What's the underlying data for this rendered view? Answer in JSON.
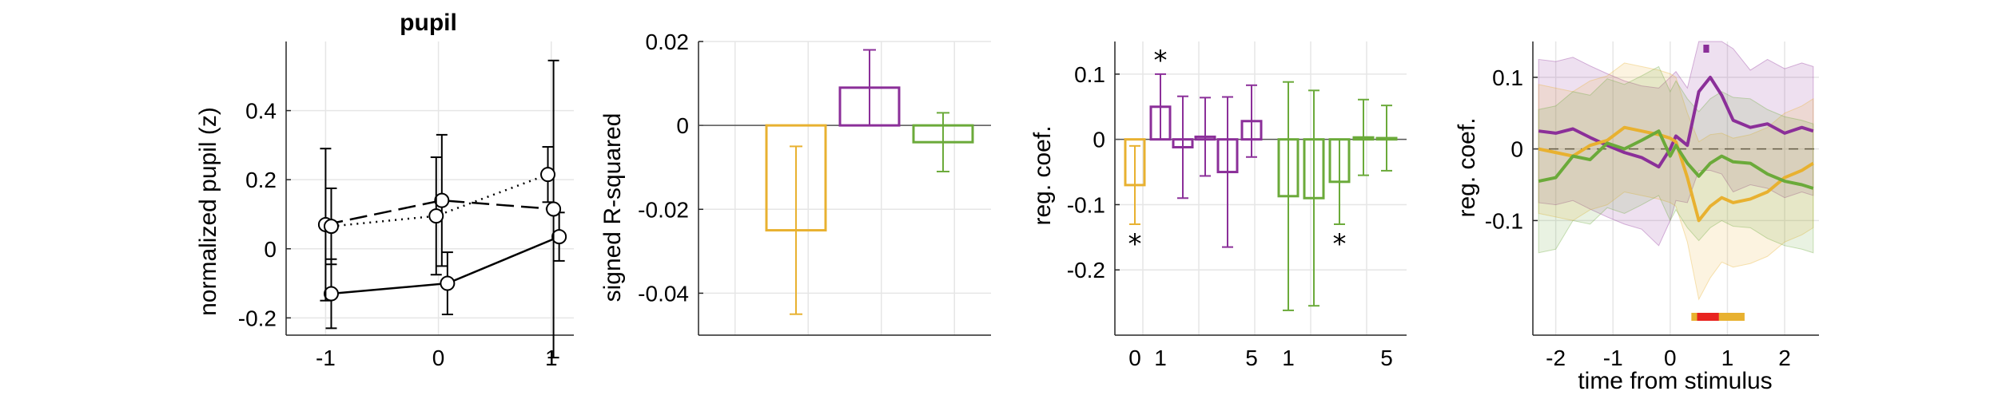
{
  "colors": {
    "yellow": "#E8B130",
    "purple": "#8B2F99",
    "green": "#6BAA3A",
    "red": "#E8231F",
    "black": "#000000"
  },
  "chart_data": [
    {
      "type": "line",
      "title": "pupil",
      "ylabel": "normalized pupil (z)",
      "xlabel": "",
      "grid": true,
      "xlim": [
        -1.35,
        1.2
      ],
      "ylim": [
        -0.25,
        0.6
      ],
      "xticks": [
        -1,
        0,
        1
      ],
      "xtick_labels": [
        "-1",
        "0",
        "1"
      ],
      "yticks": [
        -0.2,
        0,
        0.2,
        0.4
      ],
      "ytick_labels": [
        "-0.2",
        "0",
        "0.2",
        "0.4"
      ],
      "series": [
        {
          "style": "solid",
          "x": [
            -0.95,
            0.08,
            1.07
          ],
          "y": [
            -0.13,
            -0.1,
            0.035
          ],
          "err": [
            0.1,
            0.09,
            0.07
          ]
        },
        {
          "style": "dashed",
          "x": [
            -1.0,
            0.03,
            1.02
          ],
          "y": [
            0.07,
            0.14,
            0.115
          ],
          "err": [
            0.22,
            0.19,
            0.43
          ]
        },
        {
          "style": "dotted",
          "x": [
            -0.95,
            -0.02,
            0.97
          ],
          "y": [
            0.065,
            0.095,
            0.215
          ],
          "err": [
            0.11,
            0.17,
            0.08
          ]
        }
      ]
    },
    {
      "type": "bar",
      "ylabel": "signed R-squared",
      "grid": true,
      "ylim": [
        -0.05,
        0.02
      ],
      "yticks": [
        0.02,
        0,
        -0.02,
        -0.04
      ],
      "ytick_labels": [
        "0.02",
        "0",
        "-0.02",
        "-0.04"
      ],
      "bars": [
        {
          "color": "yellow",
          "value": -0.025,
          "err": 0.02
        },
        {
          "color": "purple",
          "value": 0.009,
          "err": 0.009
        },
        {
          "color": "green",
          "value": -0.004,
          "err": 0.007
        }
      ]
    },
    {
      "type": "bar",
      "ylabel": "reg. coef.",
      "grid": true,
      "ylim": [
        -0.3,
        0.15
      ],
      "yticks": [
        0.1,
        0,
        -0.1,
        -0.2
      ],
      "ytick_labels": [
        "0.1",
        "0",
        "-0.1",
        "-0.2"
      ],
      "xtick_labels": [
        "0",
        "1",
        "5",
        "1",
        "5"
      ],
      "significance_marker": "*",
      "bars": [
        {
          "color": "yellow",
          "value": -0.07,
          "err": 0.06,
          "star": "below"
        },
        {
          "color": "purple",
          "value": 0.05,
          "err": 0.05,
          "star": "above"
        },
        {
          "color": "purple",
          "value": -0.012,
          "err": 0.078
        },
        {
          "color": "purple",
          "value": 0.004,
          "err": 0.06
        },
        {
          "color": "purple",
          "value": -0.05,
          "err": 0.115
        },
        {
          "color": "purple",
          "value": 0.028,
          "err": 0.055
        },
        {
          "color": "green",
          "value": -0.087,
          "err": 0.175
        },
        {
          "color": "green",
          "value": -0.09,
          "err": 0.165
        },
        {
          "color": "green",
          "value": -0.065,
          "err": 0.065,
          "star": "below"
        },
        {
          "color": "green",
          "value": 0.003,
          "err": 0.058
        },
        {
          "color": "green",
          "value": 0.002,
          "err": 0.05
        }
      ]
    },
    {
      "type": "line",
      "ylabel": "reg. coef.",
      "xlabel": "time from stimulus",
      "grid": true,
      "xlim": [
        -2.4,
        2.6
      ],
      "ylim": [
        -0.26,
        0.15
      ],
      "xticks": [
        -2,
        -1,
        0,
        1,
        2
      ],
      "xtick_labels": [
        "-2",
        "-1",
        "0",
        "1",
        "2"
      ],
      "yticks": [
        0.1,
        0,
        -0.1
      ],
      "ytick_labels": [
        "0.1",
        "0",
        "-0.1"
      ],
      "zero_line": "dashed",
      "significance_bars": [
        {
          "color": "purple",
          "x0": 0.58,
          "x1": 0.68,
          "level": "top"
        },
        {
          "color": "yellow",
          "x0": 0.37,
          "x1": 1.3,
          "level": "bottom"
        },
        {
          "color": "red",
          "x0": 0.47,
          "x1": 0.85,
          "level": "bottom"
        }
      ],
      "series": [
        {
          "color": "purple",
          "x": [
            -2.3,
            -2.0,
            -1.7,
            -1.4,
            -1.1,
            -0.8,
            -0.5,
            -0.2,
            0.0,
            0.1,
            0.3,
            0.5,
            0.7,
            0.9,
            1.1,
            1.4,
            1.7,
            2.0,
            2.3,
            2.5
          ],
          "y": [
            0.025,
            0.022,
            0.028,
            0.016,
            0.005,
            -0.005,
            -0.012,
            -0.025,
            0.0,
            0.018,
            0.005,
            0.08,
            0.1,
            0.075,
            0.04,
            0.03,
            0.035,
            0.022,
            0.03,
            0.025
          ],
          "err": [
            0.1,
            0.1,
            0.1,
            0.1,
            0.1,
            0.1,
            0.1,
            0.11,
            0.1,
            0.09,
            0.08,
            0.11,
            0.13,
            0.11,
            0.1,
            0.08,
            0.09,
            0.09,
            0.09,
            0.09
          ]
        },
        {
          "color": "yellow",
          "x": [
            -2.3,
            -2.0,
            -1.7,
            -1.4,
            -1.1,
            -0.8,
            -0.5,
            -0.2,
            0.0,
            0.1,
            0.3,
            0.5,
            0.7,
            0.9,
            1.1,
            1.4,
            1.7,
            2.0,
            2.3,
            2.5
          ],
          "y": [
            0.0,
            -0.005,
            -0.01,
            0.005,
            0.012,
            0.03,
            0.025,
            0.02,
            0.015,
            0.01,
            -0.04,
            -0.1,
            -0.08,
            -0.068,
            -0.075,
            -0.07,
            -0.06,
            -0.04,
            -0.03,
            -0.02
          ],
          "err": [
            0.09,
            0.09,
            0.09,
            0.09,
            0.09,
            0.09,
            0.09,
            0.09,
            0.09,
            0.09,
            0.09,
            0.11,
            0.1,
            0.09,
            0.09,
            0.09,
            0.09,
            0.09,
            0.09,
            0.09
          ]
        },
        {
          "color": "green",
          "x": [
            -2.3,
            -2.0,
            -1.7,
            -1.4,
            -1.1,
            -0.8,
            -0.5,
            -0.2,
            0.0,
            0.1,
            0.3,
            0.5,
            0.7,
            0.9,
            1.1,
            1.4,
            1.7,
            2.0,
            2.3,
            2.5
          ],
          "y": [
            -0.045,
            -0.04,
            -0.01,
            -0.015,
            0.008,
            0.0,
            0.012,
            0.025,
            -0.01,
            0.005,
            -0.02,
            -0.038,
            -0.02,
            -0.01,
            -0.018,
            -0.02,
            -0.035,
            -0.045,
            -0.05,
            -0.055
          ],
          "err": [
            0.1,
            0.1,
            0.09,
            0.09,
            0.09,
            0.09,
            0.09,
            0.09,
            0.09,
            0.09,
            0.09,
            0.09,
            0.09,
            0.09,
            0.09,
            0.09,
            0.09,
            0.09,
            0.09,
            0.09
          ]
        }
      ]
    }
  ]
}
